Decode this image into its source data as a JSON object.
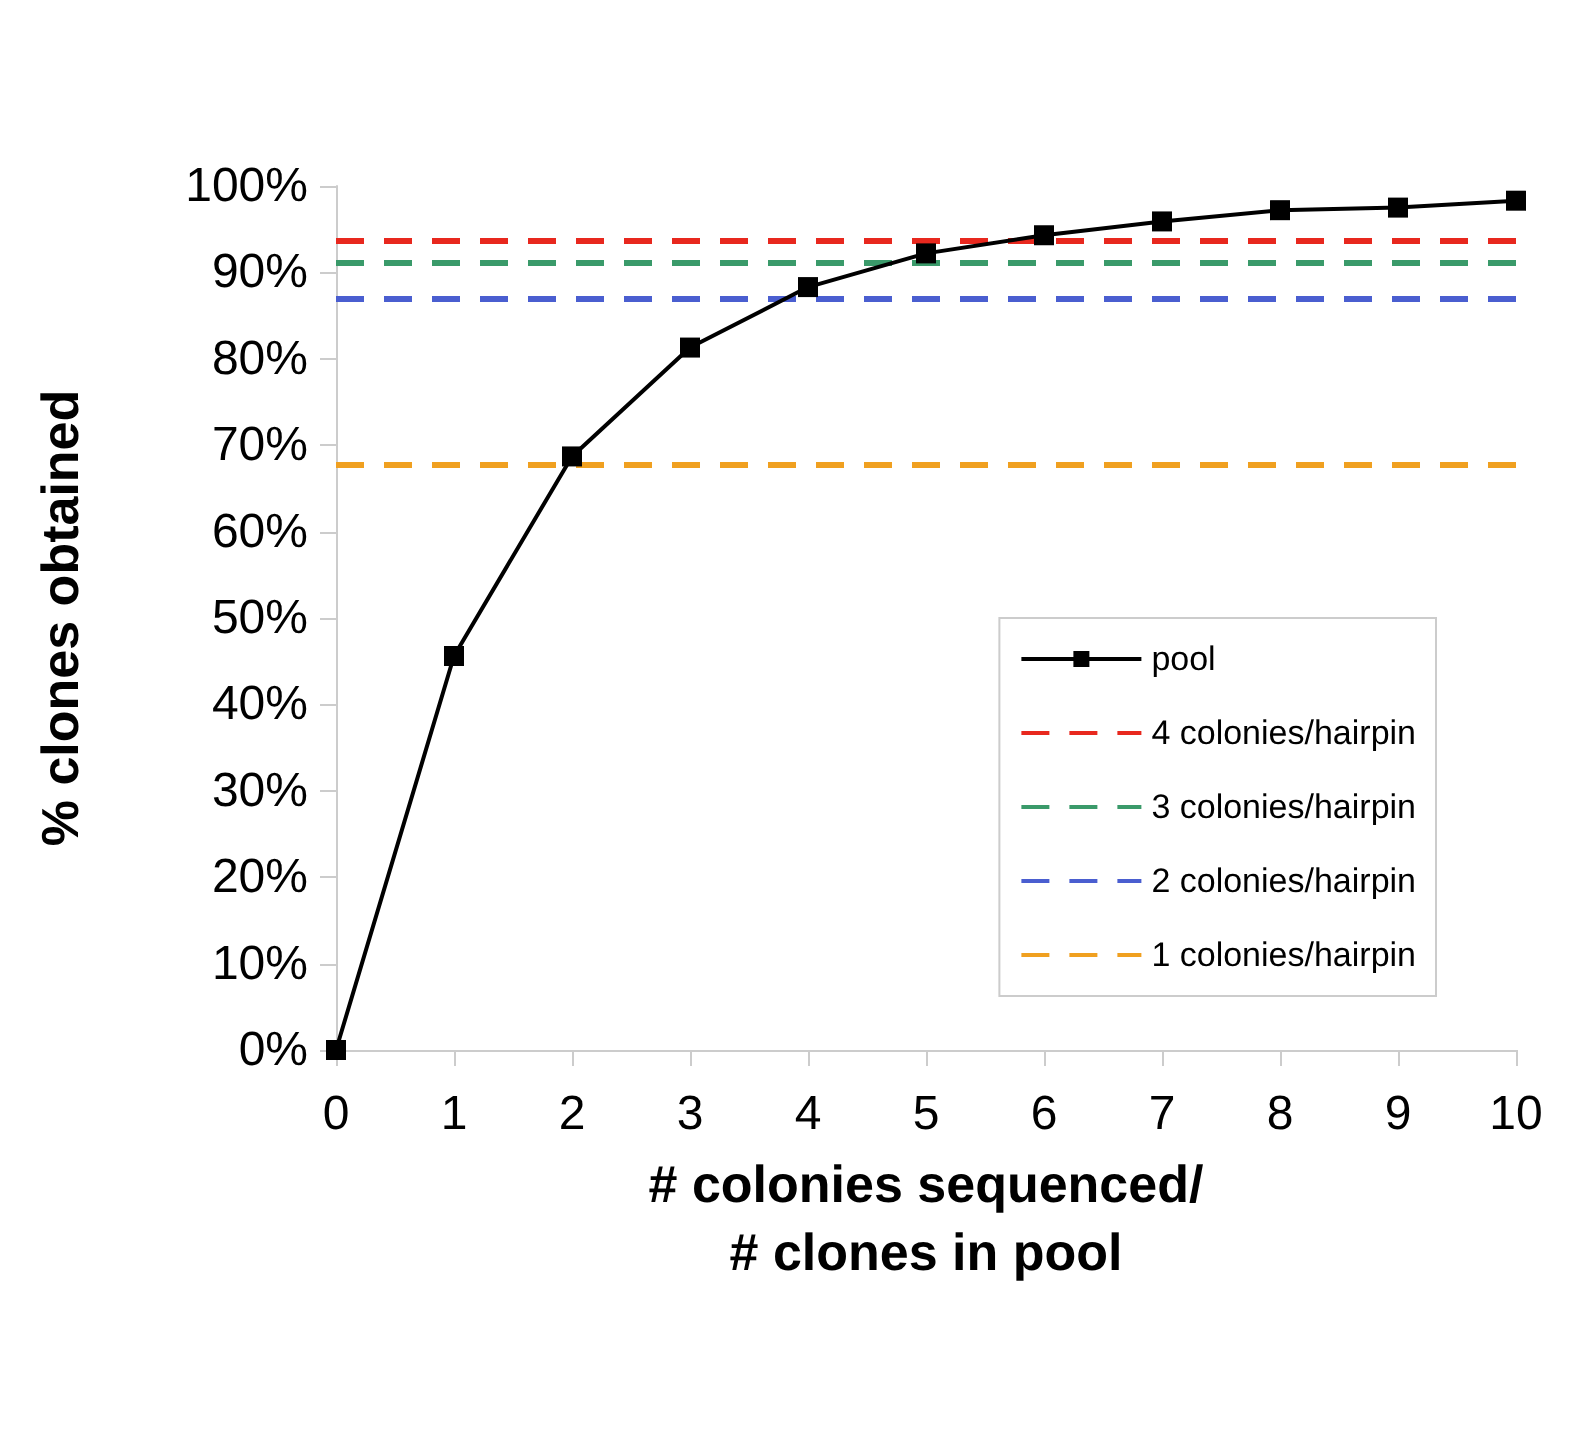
{
  "chart_data": {
    "type": "line",
    "xlabel": "# colonies sequenced/\n# clones in pool",
    "ylabel": "% clones obtained",
    "x": [
      0,
      1,
      2,
      3,
      4,
      5,
      6,
      7,
      8,
      9,
      10
    ],
    "series": [
      {
        "name": "pool",
        "color": "#000000",
        "marker": "square",
        "line_style": "solid",
        "values": [
          0,
          45.6,
          68.7,
          81.3,
          88.3,
          92.2,
          94.3,
          95.9,
          97.2,
          97.5,
          98.3
        ]
      }
    ],
    "ref_lines": [
      {
        "axis": "y",
        "value": 93.7,
        "label": "4 colonies/hairpin",
        "color": "#e8281e",
        "line_style": "dashed"
      },
      {
        "axis": "y",
        "value": 91.2,
        "label": "3 colonies/hairpin",
        "color": "#3a9a6a",
        "line_style": "dashed"
      },
      {
        "axis": "y",
        "value": 87.0,
        "label": "2 colonies/hairpin",
        "color": "#4a5ed0",
        "line_style": "dashed"
      },
      {
        "axis": "y",
        "value": 67.8,
        "label": "1 colonies/hairpin",
        "color": "#f0a020",
        "line_style": "dashed"
      }
    ],
    "xlim": [
      0,
      10
    ],
    "xticks": [
      0,
      1,
      2,
      3,
      4,
      5,
      6,
      7,
      8,
      9,
      10
    ],
    "ylim": [
      0,
      100
    ],
    "yticks": [
      {
        "value": 0,
        "label": "0%"
      },
      {
        "value": 10,
        "label": "10%"
      },
      {
        "value": 20,
        "label": "20%"
      },
      {
        "value": 30,
        "label": "30%"
      },
      {
        "value": 40,
        "label": "40%"
      },
      {
        "value": 50,
        "label": "50%"
      },
      {
        "value": 60,
        "label": "60%"
      },
      {
        "value": 70,
        "label": "70%"
      },
      {
        "value": 80,
        "label": "80%"
      },
      {
        "value": 90,
        "label": "90%"
      },
      {
        "value": 100,
        "label": "100%"
      }
    ],
    "grid": false,
    "legend": "bottom right"
  }
}
